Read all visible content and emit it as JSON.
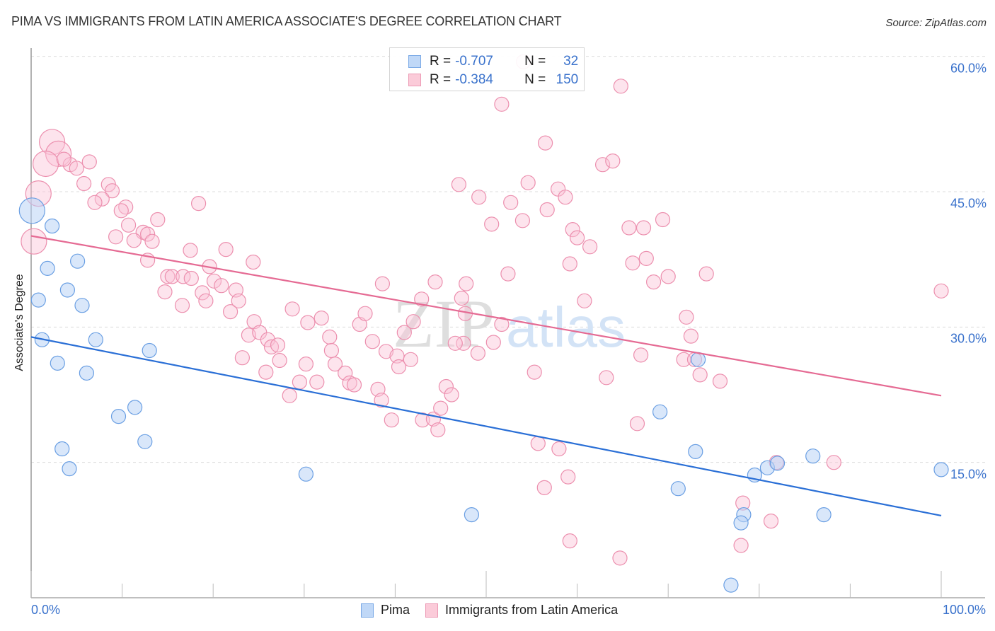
{
  "title": "PIMA VS IMMIGRANTS FROM LATIN AMERICA ASSOCIATE'S DEGREE CORRELATION CHART",
  "source": "Source: ZipAtlas.com",
  "watermark": {
    "part1": "ZIP",
    "part2": "atlas"
  },
  "legend": {
    "rows": [
      {
        "r_label": "R =",
        "r_value": "-0.707",
        "n_label": "N =",
        "n_value": "32"
      },
      {
        "r_label": "R =",
        "r_value": "-0.384",
        "n_label": "N =",
        "n_value": "150"
      }
    ]
  },
  "chart_data": {
    "type": "scatter",
    "title": "PIMA VS IMMIGRANTS FROM LATIN AMERICA ASSOCIATE'S DEGREE CORRELATION CHART",
    "xlabel": "",
    "ylabel": "Associate's Degree",
    "xlim": [
      0,
      100
    ],
    "ylim": [
      0,
      62
    ],
    "x_tick_labels": [
      "0.0%",
      "100.0%"
    ],
    "y_ticks": [
      15,
      30,
      45,
      60
    ],
    "y_tick_labels": [
      "15.0%",
      "30.0%",
      "45.0%",
      "60.0%"
    ],
    "grid": true,
    "legend_position": "top-center",
    "colors": {
      "Pima": "#5b9be8",
      "Immigrants from Latin America": "#f08aa8",
      "pima_line": "#2a6fd6",
      "immigrants_line": "#e56a93"
    },
    "series": [
      {
        "name": "Pima",
        "r": -0.707,
        "n": 32,
        "trendline": {
          "x": [
            0,
            100
          ],
          "y": [
            28.9,
            9.1
          ]
        },
        "points": [
          {
            "x": 0.1,
            "y": 42.9,
            "big": true
          },
          {
            "x": 2.3,
            "y": 41.2
          },
          {
            "x": 1.8,
            "y": 36.5
          },
          {
            "x": 5.1,
            "y": 37.3
          },
          {
            "x": 0.8,
            "y": 33.0
          },
          {
            "x": 4.0,
            "y": 34.1
          },
          {
            "x": 5.6,
            "y": 32.4
          },
          {
            "x": 1.2,
            "y": 28.6
          },
          {
            "x": 7.1,
            "y": 28.6
          },
          {
            "x": 2.9,
            "y": 26.0
          },
          {
            "x": 6.1,
            "y": 24.9
          },
          {
            "x": 13.0,
            "y": 27.4
          },
          {
            "x": 11.4,
            "y": 21.1
          },
          {
            "x": 9.6,
            "y": 20.1
          },
          {
            "x": 12.5,
            "y": 17.3
          },
          {
            "x": 3.4,
            "y": 16.5
          },
          {
            "x": 4.2,
            "y": 14.3
          },
          {
            "x": 30.2,
            "y": 13.7
          },
          {
            "x": 48.4,
            "y": 9.2
          },
          {
            "x": 69.1,
            "y": 20.6
          },
          {
            "x": 73.3,
            "y": 26.4
          },
          {
            "x": 73.0,
            "y": 16.2
          },
          {
            "x": 71.1,
            "y": 12.1
          },
          {
            "x": 79.5,
            "y": 13.6
          },
          {
            "x": 80.9,
            "y": 14.4
          },
          {
            "x": 82.0,
            "y": 14.9
          },
          {
            "x": 85.9,
            "y": 15.7
          },
          {
            "x": 78.3,
            "y": 9.2
          },
          {
            "x": 78.0,
            "y": 8.3
          },
          {
            "x": 87.1,
            "y": 9.2
          },
          {
            "x": 100.0,
            "y": 14.2
          },
          {
            "x": 76.9,
            "y": 1.4
          }
        ]
      },
      {
        "name": "Immigrants from Latin America",
        "r": -0.384,
        "n": 150,
        "trendline": {
          "x": [
            0,
            100
          ],
          "y": [
            40.1,
            22.4
          ]
        },
        "points": [
          {
            "x": 2.3,
            "y": 50.5,
            "big": true
          },
          {
            "x": 3.0,
            "y": 49.2,
            "big": true
          },
          {
            "x": 1.6,
            "y": 48.1,
            "big": true
          },
          {
            "x": 4.3,
            "y": 48.0
          },
          {
            "x": 5.0,
            "y": 47.6
          },
          {
            "x": 3.6,
            "y": 48.6
          },
          {
            "x": 6.4,
            "y": 48.3
          },
          {
            "x": 0.8,
            "y": 44.8,
            "big": true
          },
          {
            "x": 5.8,
            "y": 45.9
          },
          {
            "x": 8.5,
            "y": 45.8
          },
          {
            "x": 8.9,
            "y": 45.1
          },
          {
            "x": 7.8,
            "y": 44.2
          },
          {
            "x": 7.0,
            "y": 43.8
          },
          {
            "x": 10.4,
            "y": 43.3
          },
          {
            "x": 9.9,
            "y": 42.9
          },
          {
            "x": 18.4,
            "y": 43.7
          },
          {
            "x": 0.3,
            "y": 39.5,
            "big": true
          },
          {
            "x": 13.9,
            "y": 41.9
          },
          {
            "x": 10.7,
            "y": 41.3
          },
          {
            "x": 12.3,
            "y": 40.5
          },
          {
            "x": 12.8,
            "y": 40.3
          },
          {
            "x": 9.3,
            "y": 40.0
          },
          {
            "x": 11.3,
            "y": 39.6
          },
          {
            "x": 13.3,
            "y": 39.5
          },
          {
            "x": 17.5,
            "y": 38.5
          },
          {
            "x": 21.4,
            "y": 38.6
          },
          {
            "x": 12.8,
            "y": 37.4
          },
          {
            "x": 19.6,
            "y": 36.7
          },
          {
            "x": 15.0,
            "y": 35.6
          },
          {
            "x": 15.5,
            "y": 35.6
          },
          {
            "x": 16.7,
            "y": 35.6
          },
          {
            "x": 17.6,
            "y": 35.4
          },
          {
            "x": 20.1,
            "y": 35.1
          },
          {
            "x": 14.7,
            "y": 33.9
          },
          {
            "x": 16.6,
            "y": 32.4
          },
          {
            "x": 18.8,
            "y": 33.8
          },
          {
            "x": 19.2,
            "y": 32.9
          },
          {
            "x": 20.9,
            "y": 34.6
          },
          {
            "x": 22.5,
            "y": 34.1
          },
          {
            "x": 24.4,
            "y": 37.2
          },
          {
            "x": 21.9,
            "y": 31.7
          },
          {
            "x": 22.8,
            "y": 32.9
          },
          {
            "x": 24.5,
            "y": 30.6
          },
          {
            "x": 28.7,
            "y": 32.0
          },
          {
            "x": 23.9,
            "y": 29.1
          },
          {
            "x": 25.1,
            "y": 29.4
          },
          {
            "x": 26.0,
            "y": 28.6
          },
          {
            "x": 26.4,
            "y": 27.8
          },
          {
            "x": 27.1,
            "y": 28.0
          },
          {
            "x": 23.2,
            "y": 26.6
          },
          {
            "x": 25.8,
            "y": 25.0
          },
          {
            "x": 27.3,
            "y": 26.3
          },
          {
            "x": 29.5,
            "y": 23.9
          },
          {
            "x": 28.4,
            "y": 22.4
          },
          {
            "x": 30.2,
            "y": 25.9
          },
          {
            "x": 31.4,
            "y": 23.9
          },
          {
            "x": 30.4,
            "y": 30.5
          },
          {
            "x": 31.9,
            "y": 31.0
          },
          {
            "x": 32.8,
            "y": 28.9
          },
          {
            "x": 33.0,
            "y": 27.4
          },
          {
            "x": 33.4,
            "y": 25.9
          },
          {
            "x": 34.5,
            "y": 24.9
          },
          {
            "x": 35.0,
            "y": 23.8
          },
          {
            "x": 35.5,
            "y": 23.6
          },
          {
            "x": 36.1,
            "y": 30.3
          },
          {
            "x": 36.7,
            "y": 31.5
          },
          {
            "x": 37.5,
            "y": 28.4
          },
          {
            "x": 38.1,
            "y": 23.1
          },
          {
            "x": 38.5,
            "y": 21.9
          },
          {
            "x": 39.0,
            "y": 27.3
          },
          {
            "x": 38.6,
            "y": 34.8
          },
          {
            "x": 40.2,
            "y": 26.8
          },
          {
            "x": 40.4,
            "y": 25.6
          },
          {
            "x": 39.6,
            "y": 19.7
          },
          {
            "x": 41.0,
            "y": 29.4
          },
          {
            "x": 41.7,
            "y": 26.4
          },
          {
            "x": 42.0,
            "y": 30.6
          },
          {
            "x": 42.9,
            "y": 33.1
          },
          {
            "x": 43.0,
            "y": 19.7
          },
          {
            "x": 44.2,
            "y": 19.8
          },
          {
            "x": 44.7,
            "y": 18.6
          },
          {
            "x": 45.0,
            "y": 21.0
          },
          {
            "x": 44.4,
            "y": 35.0
          },
          {
            "x": 45.6,
            "y": 23.4
          },
          {
            "x": 46.2,
            "y": 22.5
          },
          {
            "x": 47.8,
            "y": 34.8
          },
          {
            "x": 47.7,
            "y": 31.5
          },
          {
            "x": 47.3,
            "y": 33.2
          },
          {
            "x": 47.5,
            "y": 28.2
          },
          {
            "x": 46.6,
            "y": 28.2
          },
          {
            "x": 49.1,
            "y": 27.1
          },
          {
            "x": 50.8,
            "y": 28.3
          },
          {
            "x": 51.7,
            "y": 30.3
          },
          {
            "x": 47.0,
            "y": 45.8
          },
          {
            "x": 49.2,
            "y": 44.4
          },
          {
            "x": 50.6,
            "y": 41.4
          },
          {
            "x": 51.7,
            "y": 54.7
          },
          {
            "x": 52.7,
            "y": 43.8
          },
          {
            "x": 52.4,
            "y": 35.9
          },
          {
            "x": 54.1,
            "y": 59.4
          },
          {
            "x": 54.0,
            "y": 41.8
          },
          {
            "x": 54.6,
            "y": 46.0
          },
          {
            "x": 55.3,
            "y": 25.0
          },
          {
            "x": 55.7,
            "y": 17.1
          },
          {
            "x": 56.4,
            "y": 12.2
          },
          {
            "x": 56.5,
            "y": 50.4
          },
          {
            "x": 56.7,
            "y": 43.0
          },
          {
            "x": 57.9,
            "y": 45.3
          },
          {
            "x": 58.7,
            "y": 44.4
          },
          {
            "x": 59.5,
            "y": 40.8
          },
          {
            "x": 60.0,
            "y": 39.9
          },
          {
            "x": 59.2,
            "y": 37.0
          },
          {
            "x": 58.0,
            "y": 16.5
          },
          {
            "x": 59.0,
            "y": 13.4
          },
          {
            "x": 59.2,
            "y": 6.3
          },
          {
            "x": 60.8,
            "y": 32.9
          },
          {
            "x": 62.8,
            "y": 48.0
          },
          {
            "x": 61.4,
            "y": 38.9
          },
          {
            "x": 63.2,
            "y": 24.4
          },
          {
            "x": 63.9,
            "y": 48.4
          },
          {
            "x": 64.8,
            "y": 56.7
          },
          {
            "x": 65.7,
            "y": 41.0
          },
          {
            "x": 66.1,
            "y": 37.1
          },
          {
            "x": 66.6,
            "y": 19.3
          },
          {
            "x": 67.3,
            "y": 41.0
          },
          {
            "x": 67.6,
            "y": 37.6
          },
          {
            "x": 68.4,
            "y": 35.0
          },
          {
            "x": 69.4,
            "y": 41.9
          },
          {
            "x": 70.0,
            "y": 35.6
          },
          {
            "x": 67.0,
            "y": 26.9
          },
          {
            "x": 64.7,
            "y": 4.4
          },
          {
            "x": 72.0,
            "y": 31.1
          },
          {
            "x": 72.5,
            "y": 29.0
          },
          {
            "x": 71.7,
            "y": 26.4
          },
          {
            "x": 72.9,
            "y": 26.4
          },
          {
            "x": 73.5,
            "y": 24.7
          },
          {
            "x": 74.2,
            "y": 35.9
          },
          {
            "x": 75.7,
            "y": 24.0
          },
          {
            "x": 78.2,
            "y": 10.5
          },
          {
            "x": 78.0,
            "y": 5.8
          },
          {
            "x": 81.3,
            "y": 8.5
          },
          {
            "x": 81.9,
            "y": 15.0
          },
          {
            "x": 88.2,
            "y": 15.0
          },
          {
            "x": 100.0,
            "y": 34.0
          }
        ]
      }
    ]
  },
  "bottom_legend": [
    {
      "label": "Pima"
    },
    {
      "label": "Immigrants from Latin America"
    }
  ]
}
